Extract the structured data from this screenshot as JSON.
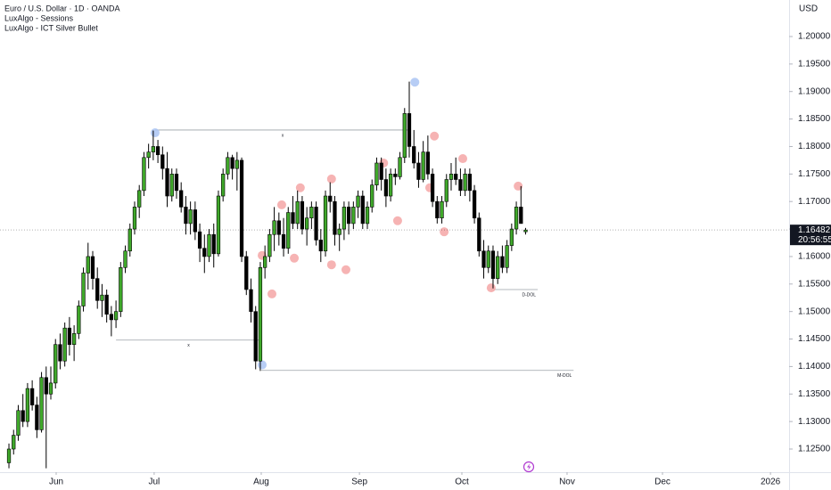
{
  "chart_data": {
    "type": "candlestick",
    "title": "Euro / U.S. Dollar · 1D · OANDA",
    "indicators": [
      "LuxAlgo - Sessions",
      "LuxAlgo - ICT Silver Bullet"
    ],
    "currency": "USD",
    "up_color": "#3fa82a",
    "down_color": "#000000",
    "open": [
      1.1225,
      1.125,
      1.1275,
      1.132,
      1.13,
      1.136,
      1.133,
      1.1285,
      1.138,
      1.135,
      1.137,
      1.144,
      1.141,
      1.147,
      1.144,
      1.146,
      1.151,
      1.157,
      1.16,
      1.156,
      1.152,
      1.153,
      1.1495,
      1.1485,
      1.15,
      1.158,
      1.161,
      1.165,
      1.169,
      1.172,
      1.178,
      1.179,
      1.18,
      1.1785,
      1.176,
      1.171,
      1.175,
      1.172,
      1.169,
      1.166,
      1.1685,
      1.1645,
      1.1615,
      1.16,
      1.164,
      1.1605,
      1.171,
      1.175,
      1.178,
      1.176,
      1.1775,
      1.16,
      1.154,
      1.15,
      1.141,
      1.158,
      1.16,
      1.164,
      1.1665,
      1.164,
      1.1615,
      1.168,
      1.166,
      1.17,
      1.165,
      1.167,
      1.169,
      1.163,
      1.161,
      1.171,
      1.17,
      1.164,
      1.165,
      1.169,
      1.166,
      1.169,
      1.171,
      1.166,
      1.169,
      1.173,
      1.177,
      1.174,
      1.171,
      1.175,
      1.1745,
      1.178,
      1.186,
      1.18,
      1.177,
      1.174,
      1.179,
      1.175,
      1.17,
      1.167,
      1.17,
      1.174,
      1.175,
      1.174,
      1.172,
      1.175,
      1.172,
      1.167,
      1.161,
      1.158,
      1.161,
      1.156,
      1.16,
      1.158,
      1.162,
      1.165,
      1.169,
      1.1645
    ],
    "high": [
      1.126,
      1.1285,
      1.133,
      1.135,
      1.137,
      1.1375,
      1.1345,
      1.139,
      1.14,
      1.14,
      1.145,
      1.146,
      1.148,
      1.149,
      1.1475,
      1.152,
      1.158,
      1.1625,
      1.161,
      1.158,
      1.155,
      1.154,
      1.151,
      1.152,
      1.159,
      1.162,
      1.166,
      1.17,
      1.173,
      1.179,
      1.1805,
      1.1829,
      1.1812,
      1.18,
      1.179,
      1.176,
      1.176,
      1.1735,
      1.171,
      1.17,
      1.17,
      1.166,
      1.164,
      1.165,
      1.166,
      1.172,
      1.176,
      1.179,
      1.1785,
      1.179,
      1.178,
      1.161,
      1.156,
      1.151,
      1.159,
      1.162,
      1.165,
      1.169,
      1.168,
      1.167,
      1.169,
      1.171,
      1.172,
      1.171,
      1.169,
      1.17,
      1.17,
      1.165,
      1.172,
      1.1735,
      1.171,
      1.166,
      1.17,
      1.17,
      1.17,
      1.172,
      1.172,
      1.17,
      1.174,
      1.178,
      1.178,
      1.176,
      1.176,
      1.176,
      1.179,
      1.187,
      1.1918,
      1.183,
      1.179,
      1.181,
      1.182,
      1.176,
      1.171,
      1.171,
      1.175,
      1.177,
      1.178,
      1.176,
      1.176,
      1.176,
      1.173,
      1.168,
      1.163,
      1.162,
      1.162,
      1.161,
      1.162,
      1.163,
      1.166,
      1.17,
      1.1728,
      1.1652
    ],
    "low": [
      1.1215,
      1.124,
      1.1265,
      1.129,
      1.129,
      1.132,
      1.127,
      1.128,
      1.1215,
      1.134,
      1.136,
      1.1395,
      1.14,
      1.142,
      1.141,
      1.145,
      1.15,
      1.154,
      1.154,
      1.1505,
      1.149,
      1.148,
      1.1455,
      1.147,
      1.149,
      1.157,
      1.16,
      1.164,
      1.167,
      1.171,
      1.176,
      1.1775,
      1.177,
      1.174,
      1.169,
      1.17,
      1.1705,
      1.168,
      1.164,
      1.164,
      1.163,
      1.159,
      1.157,
      1.159,
      1.158,
      1.16,
      1.17,
      1.174,
      1.174,
      1.172,
      1.159,
      1.153,
      1.148,
      1.1395,
      1.1392,
      1.156,
      1.159,
      1.161,
      1.162,
      1.16,
      1.1605,
      1.165,
      1.165,
      1.164,
      1.162,
      1.165,
      1.162,
      1.159,
      1.16,
      1.168,
      1.162,
      1.161,
      1.163,
      1.164,
      1.165,
      1.167,
      1.165,
      1.165,
      1.168,
      1.172,
      1.172,
      1.169,
      1.17,
      1.173,
      1.174,
      1.177,
      1.178,
      1.176,
      1.1725,
      1.1735,
      1.174,
      1.169,
      1.166,
      1.166,
      1.169,
      1.172,
      1.173,
      1.171,
      1.171,
      1.17,
      1.166,
      1.16,
      1.156,
      1.157,
      1.1542,
      1.155,
      1.157,
      1.157,
      1.161,
      1.164,
      1.166,
      1.164
    ],
    "close": [
      1.125,
      1.1275,
      1.132,
      1.13,
      1.136,
      1.133,
      1.1285,
      1.138,
      1.135,
      1.137,
      1.144,
      1.141,
      1.147,
      1.144,
      1.146,
      1.151,
      1.157,
      1.16,
      1.156,
      1.152,
      1.153,
      1.1495,
      1.1485,
      1.15,
      1.158,
      1.161,
      1.165,
      1.169,
      1.172,
      1.178,
      1.179,
      1.18,
      1.1785,
      1.176,
      1.171,
      1.175,
      1.172,
      1.169,
      1.166,
      1.1685,
      1.1645,
      1.1615,
      1.16,
      1.164,
      1.1605,
      1.171,
      1.175,
      1.178,
      1.176,
      1.1775,
      1.16,
      1.154,
      1.15,
      1.141,
      1.158,
      1.16,
      1.164,
      1.1665,
      1.164,
      1.1615,
      1.168,
      1.166,
      1.17,
      1.165,
      1.167,
      1.169,
      1.163,
      1.161,
      1.171,
      1.17,
      1.164,
      1.165,
      1.169,
      1.166,
      1.169,
      1.171,
      1.166,
      1.169,
      1.173,
      1.177,
      1.174,
      1.171,
      1.175,
      1.1745,
      1.178,
      1.186,
      1.18,
      1.177,
      1.174,
      1.179,
      1.175,
      1.17,
      1.167,
      1.17,
      1.174,
      1.175,
      1.174,
      1.172,
      1.175,
      1.172,
      1.167,
      1.161,
      1.158,
      1.161,
      1.156,
      1.16,
      1.158,
      1.162,
      1.165,
      1.169,
      1.166,
      1.16482
    ],
    "last_price": 1.16482,
    "countdown": "20:56:55",
    "levels": [
      {
        "value": 1.183,
        "label": "x",
        "start": 31.4,
        "end": 86.2
      },
      {
        "value": 1.1448,
        "label": "x",
        "start": 23.0,
        "end": 54.2
      },
      {
        "value": 1.1393,
        "label": "M-DOL",
        "start": 54.2,
        "end": 121.3
      },
      {
        "value": 1.154,
        "label": "D-DOL",
        "start": 103.6,
        "end": 113.6
      }
    ],
    "markers": [
      {
        "x": 31.4,
        "y": 1.1825,
        "color": "#aac4f3"
      },
      {
        "x": 87.2,
        "y": 1.1917,
        "color": "#aac4f3"
      },
      {
        "x": 54.4,
        "y": 1.1403,
        "color": "#aac4f3"
      },
      {
        "x": 54.4,
        "y": 1.1602,
        "color": "#f4a6a6"
      },
      {
        "x": 56.5,
        "y": 1.1532,
        "color": "#f4a6a6"
      },
      {
        "x": 58.6,
        "y": 1.1694,
        "color": "#f4a6a6"
      },
      {
        "x": 61.3,
        "y": 1.1597,
        "color": "#f4a6a6"
      },
      {
        "x": 62.6,
        "y": 1.1725,
        "color": "#f4a6a6"
      },
      {
        "x": 69.3,
        "y": 1.1741,
        "color": "#f4a6a6"
      },
      {
        "x": 69.3,
        "y": 1.1585,
        "color": "#f4a6a6"
      },
      {
        "x": 72.4,
        "y": 1.1576,
        "color": "#f4a6a6"
      },
      {
        "x": 80.5,
        "y": 1.177,
        "color": "#f4a6a6"
      },
      {
        "x": 83.5,
        "y": 1.1665,
        "color": "#f4a6a6"
      },
      {
        "x": 90.4,
        "y": 1.1725,
        "color": "#f4a6a6"
      },
      {
        "x": 91.4,
        "y": 1.1819,
        "color": "#f4a6a6"
      },
      {
        "x": 93.5,
        "y": 1.1645,
        "color": "#f4a6a6"
      },
      {
        "x": 97.5,
        "y": 1.1778,
        "color": "#f4a6a6"
      },
      {
        "x": 103.6,
        "y": 1.1543,
        "color": "#f4a6a6"
      },
      {
        "x": 109.4,
        "y": 1.1728,
        "color": "#f4a6a6"
      }
    ],
    "xlim": [
      -1.92,
      167.6
    ],
    "xticks": [
      {
        "value": 10.15,
        "label": "Jun"
      },
      {
        "value": 31.2,
        "label": "Jul"
      },
      {
        "value": 54.2,
        "label": "Aug"
      },
      {
        "value": 75.3,
        "label": "Sep"
      },
      {
        "value": 97.3,
        "label": "Oct"
      },
      {
        "value": 119.9,
        "label": "Nov"
      },
      {
        "value": 140.4,
        "label": "Dec"
      },
      {
        "value": 163.6,
        "label": "2026"
      }
    ],
    "ylim": [
      1.12079,
      1.20664
    ],
    "yticks": [
      {
        "value": 1.125,
        "label": "1.12500"
      },
      {
        "value": 1.13,
        "label": "1.13000"
      },
      {
        "value": 1.135,
        "label": "1.13500"
      },
      {
        "value": 1.14,
        "label": "1.14000"
      },
      {
        "value": 1.145,
        "label": "1.14500"
      },
      {
        "value": 1.15,
        "label": "1.15000"
      },
      {
        "value": 1.155,
        "label": "1.15500"
      },
      {
        "value": 1.16,
        "label": "1.16000"
      },
      {
        "value": 1.165,
        "label": "1.16500"
      },
      {
        "value": 1.17,
        "label": "1.17000"
      },
      {
        "value": 1.175,
        "label": "1.17500"
      },
      {
        "value": 1.18,
        "label": "1.18000"
      },
      {
        "value": 1.185,
        "label": "1.18500"
      },
      {
        "value": 1.19,
        "label": "1.19000"
      },
      {
        "value": 1.195,
        "label": "1.19500"
      },
      {
        "value": 1.2,
        "label": "1.20000"
      }
    ]
  }
}
